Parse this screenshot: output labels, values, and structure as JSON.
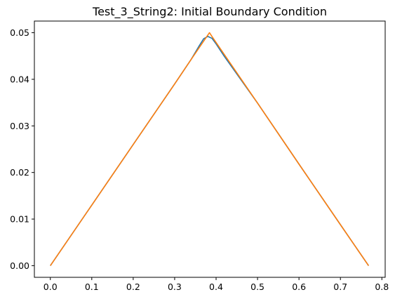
{
  "chart_data": {
    "type": "line",
    "title": "Test_3_String2: Initial Boundary Condition",
    "xlabel": "",
    "ylabel": "",
    "xlim": [
      -0.0385,
      0.808
    ],
    "ylim": [
      -0.0025,
      0.0525
    ],
    "xticks": [
      0.0,
      0.1,
      0.2,
      0.3,
      0.4,
      0.5,
      0.6,
      0.7,
      0.8
    ],
    "xtick_labels": [
      "0.0",
      "0.1",
      "0.2",
      "0.3",
      "0.4",
      "0.5",
      "0.6",
      "0.7",
      "0.8"
    ],
    "yticks": [
      0.0,
      0.01,
      0.02,
      0.03,
      0.04,
      0.05
    ],
    "ytick_labels": [
      "0.00",
      "0.01",
      "0.02",
      "0.03",
      "0.04",
      "0.05"
    ],
    "grid": false,
    "legend": false,
    "series": [
      {
        "color": "#1f77b4",
        "x": [
          0.0,
          0.1,
          0.2,
          0.3,
          0.34,
          0.36,
          0.37,
          0.38,
          0.39,
          0.4,
          0.42,
          0.5,
          0.6,
          0.7,
          0.768
        ],
        "y": [
          0.0,
          0.013,
          0.026,
          0.039,
          0.0443,
          0.0473,
          0.0487,
          0.0492,
          0.0488,
          0.0476,
          0.0449,
          0.0349,
          0.0218,
          0.0088,
          0.0
        ]
      },
      {
        "color": "#ff7f0e",
        "x": [
          0.0,
          0.1,
          0.2,
          0.3,
          0.34,
          0.36,
          0.37,
          0.384,
          0.39,
          0.4,
          0.42,
          0.5,
          0.6,
          0.7,
          0.768
        ],
        "y": [
          0.0,
          0.013,
          0.026,
          0.039,
          0.0443,
          0.0469,
          0.0482,
          0.05,
          0.0492,
          0.0479,
          0.0453,
          0.0349,
          0.0218,
          0.0088,
          0.0
        ]
      }
    ]
  }
}
